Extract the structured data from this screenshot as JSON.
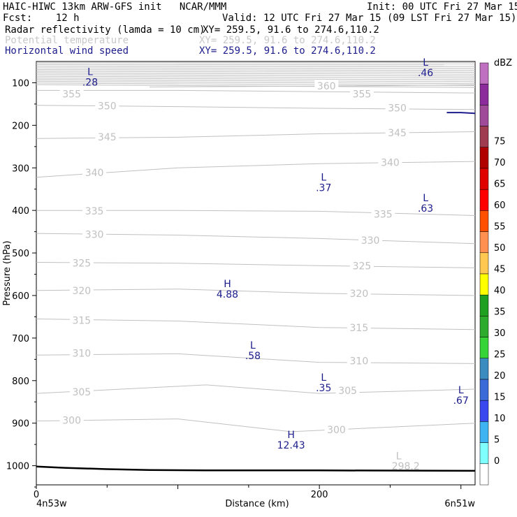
{
  "header": {
    "line1_left": "HAIC-HIWC 13km ARW-GFS init   NCAR/MMM",
    "line1_right": "Init: 00 UTC Fri 27 Mar 15",
    "line2_left": "Fcst:    12 h",
    "line2_right": "Valid: 12 UTC Fri 27 Mar 15 (09 LST Fri 27 Mar 15)",
    "field1_name": "Radar reflectivity (lamda = 10 cm)",
    "field1_xy": "XY= 259.5, 91.6 to 274.6,110.2",
    "field2_name": "Potential temperature",
    "field2_xy": "XY= 259.5, 91.6 to 274.6,110.2",
    "field3_name": "Horizontal wind speed",
    "field3_xy": "XY= 259.5, 91.6 to 274.6,110.2"
  },
  "colors": {
    "theta": "#c0c0c0",
    "wind": "#1c1c8c",
    "terrain": "#000000"
  },
  "chart_data": {
    "type": "cross-section",
    "xlabel": "Distance (km)",
    "ylabel": "Pressure (hPa)",
    "x_ticks": [
      0,
      200
    ],
    "x_end_left": "4n53w",
    "x_end_right": "6n51w",
    "xlim": [
      0,
      310
    ],
    "ylim": [
      1045,
      50
    ],
    "y_ticks": [
      100,
      200,
      300,
      400,
      500,
      600,
      700,
      800,
      900,
      1000
    ],
    "colorbar": {
      "unit": "dBZ",
      "ticks": [
        0,
        5,
        10,
        15,
        20,
        25,
        30,
        35,
        40,
        45,
        50,
        55,
        60,
        65,
        70,
        75
      ],
      "colors": [
        "#ffffff",
        "#80ffff",
        "#3fb4f2",
        "#3a48f0",
        "#3a6ad8",
        "#3c8cc0",
        "#36d436",
        "#2cab2c",
        "#20a020",
        "#ffff00",
        "#ffc850",
        "#ff9050",
        "#ff5000",
        "#ff0000",
        "#e00000",
        "#b00000",
        "#a03c50",
        "#a04a9a",
        "#8c2c9c",
        "#c070c0"
      ]
    },
    "theta_contours": [
      {
        "label": "355",
        "label_positions": [
          [
            25,
            128
          ],
          [
            230,
            128
          ]
        ],
        "points": [
          [
            0,
            118
          ],
          [
            100,
            118
          ],
          [
            200,
            121
          ],
          [
            310,
            124
          ]
        ]
      },
      {
        "label": "350",
        "label_positions": [
          [
            50,
            156
          ],
          [
            255,
            161
          ]
        ],
        "points": [
          [
            0,
            153
          ],
          [
            100,
            156
          ],
          [
            200,
            160
          ],
          [
            310,
            163
          ]
        ]
      },
      {
        "label": "345",
        "label_positions": [
          [
            50,
            229
          ],
          [
            255,
            219
          ]
        ],
        "points": [
          [
            0,
            231
          ],
          [
            100,
            228
          ],
          [
            200,
            220
          ],
          [
            310,
            215
          ]
        ]
      },
      {
        "label": "340",
        "label_positions": [
          [
            41,
            313
          ],
          [
            250,
            289
          ]
        ],
        "points": [
          [
            0,
            322
          ],
          [
            100,
            300
          ],
          [
            200,
            290
          ],
          [
            310,
            285
          ]
        ]
      },
      {
        "label": "335",
        "label_positions": [
          [
            41,
            403
          ],
          [
            245,
            410
          ]
        ],
        "points": [
          [
            0,
            400
          ],
          [
            100,
            400
          ],
          [
            200,
            402
          ],
          [
            310,
            412
          ]
        ]
      },
      {
        "label": "330",
        "label_positions": [
          [
            41,
            458
          ],
          [
            236,
            472
          ]
        ],
        "points": [
          [
            0,
            454
          ],
          [
            100,
            458
          ],
          [
            200,
            466
          ],
          [
            310,
            478
          ]
        ]
      },
      {
        "label": "325",
        "label_positions": [
          [
            32,
            525
          ],
          [
            230,
            532
          ]
        ],
        "points": [
          [
            0,
            522
          ],
          [
            100,
            524
          ],
          [
            200,
            530
          ],
          [
            310,
            535
          ]
        ]
      },
      {
        "label": "320",
        "label_positions": [
          [
            32,
            590
          ],
          [
            228,
            597
          ]
        ],
        "points": [
          [
            0,
            588
          ],
          [
            100,
            585
          ],
          [
            200,
            595
          ],
          [
            310,
            600
          ]
        ]
      },
      {
        "label": "315",
        "label_positions": [
          [
            32,
            660
          ],
          [
            228,
            677
          ]
        ],
        "points": [
          [
            0,
            655
          ],
          [
            100,
            660
          ],
          [
            200,
            675
          ],
          [
            310,
            680
          ]
        ]
      },
      {
        "label": "310",
        "label_positions": [
          [
            32,
            737
          ],
          [
            228,
            755
          ]
        ],
        "points": [
          [
            0,
            740
          ],
          [
            100,
            737
          ],
          [
            200,
            757
          ],
          [
            310,
            760
          ]
        ]
      },
      {
        "label": "305",
        "label_positions": [
          [
            32,
            828
          ],
          [
            220,
            825
          ]
        ],
        "points": [
          [
            0,
            830
          ],
          [
            120,
            810
          ],
          [
            200,
            830
          ],
          [
            310,
            820
          ]
        ]
      },
      {
        "label": "300",
        "label_positions": [
          [
            25,
            895
          ],
          [
            212,
            917
          ]
        ],
        "points": [
          [
            0,
            895
          ],
          [
            100,
            890
          ],
          [
            180,
            920
          ],
          [
            310,
            900
          ]
        ]
      },
      {
        "label": "298.2",
        "label_positions": [
          [
            261,
            1002
          ]
        ],
        "points": []
      },
      {
        "label": "360",
        "label_positions": [
          [
            205,
            109
          ]
        ],
        "points": [
          [
            80,
            110
          ],
          [
            200,
            108
          ],
          [
            310,
            105
          ]
        ]
      }
    ],
    "theta_extrema": [
      {
        "type": "L",
        "value": "298.2",
        "x": 256,
        "p": 985
      }
    ],
    "wind_extrema": [
      {
        "type": "L",
        "value": ".28",
        "x": 38,
        "p": 82
      },
      {
        "type": "L",
        "value": ".46",
        "x": 275,
        "p": 60
      },
      {
        "type": "L",
        "value": ".37",
        "x": 203,
        "p": 330
      },
      {
        "type": "L",
        "value": ".63",
        "x": 275,
        "p": 378
      },
      {
        "type": "H",
        "value": "4.88",
        "x": 135,
        "p": 580
      },
      {
        "type": "L",
        "value": ".58",
        "x": 153,
        "p": 725
      },
      {
        "type": "L",
        "value": ".35",
        "x": 203,
        "p": 800
      },
      {
        "type": "L",
        "value": ".67",
        "x": 300,
        "p": 830
      },
      {
        "type": "H",
        "value": "12.43",
        "x": 180,
        "p": 935
      }
    ],
    "terrain": [
      [
        0,
        1002
      ],
      [
        20,
        1005
      ],
      [
        50,
        1008
      ],
      [
        80,
        1010
      ],
      [
        120,
        1011
      ],
      [
        200,
        1011
      ],
      [
        310,
        1012
      ]
    ],
    "wind_feature": [
      [
        290,
        170
      ],
      [
        300,
        170
      ],
      [
        310,
        172
      ]
    ]
  }
}
